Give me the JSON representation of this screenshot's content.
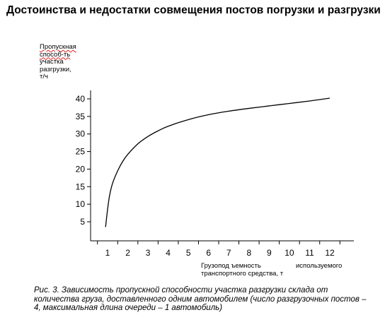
{
  "page": {
    "title": "Достоинства и недостатки совмещения постов погрузки и разгрузки",
    "caption": "Рис. 3. Зависимость пропускной способности участка разгрузки склада от количества груза, доставленного одним автомобилем (число разгрузочных постов – 4, максимальная длина очереди – 1 автомобиль)"
  },
  "chart_data": {
    "type": "line",
    "ylabel_lines": [
      "Пропускная",
      "способ-ть",
      "участка",
      "разгрузки,",
      "т/ч"
    ],
    "xlabel_lines": [
      "Грузопод ъемность",
      "транспортного средства, т"
    ],
    "xlabel_extra": "используемого",
    "x_ticks": [
      1,
      2,
      3,
      4,
      5,
      6,
      7,
      8,
      9,
      10,
      11,
      12
    ],
    "y_ticks": [
      5,
      10,
      15,
      20,
      25,
      30,
      35,
      40
    ],
    "xlim": [
      0,
      12.5
    ],
    "ylim": [
      0,
      43
    ],
    "grid": false,
    "series": [
      {
        "x": [
          0.9,
          1.0,
          1.1,
          1.25,
          1.5,
          1.75,
          2.0,
          2.5,
          3.0,
          3.5,
          4.0,
          5.0,
          6.0,
          7.0,
          8.0,
          9.0,
          10.0,
          11.0,
          12.0
        ],
        "y": [
          3.5,
          8.5,
          12.5,
          16.0,
          19.5,
          22.2,
          24.2,
          27.2,
          29.3,
          30.9,
          32.2,
          34.1,
          35.5,
          36.5,
          37.3,
          38.0,
          38.7,
          39.4,
          40.2
        ]
      }
    ]
  }
}
